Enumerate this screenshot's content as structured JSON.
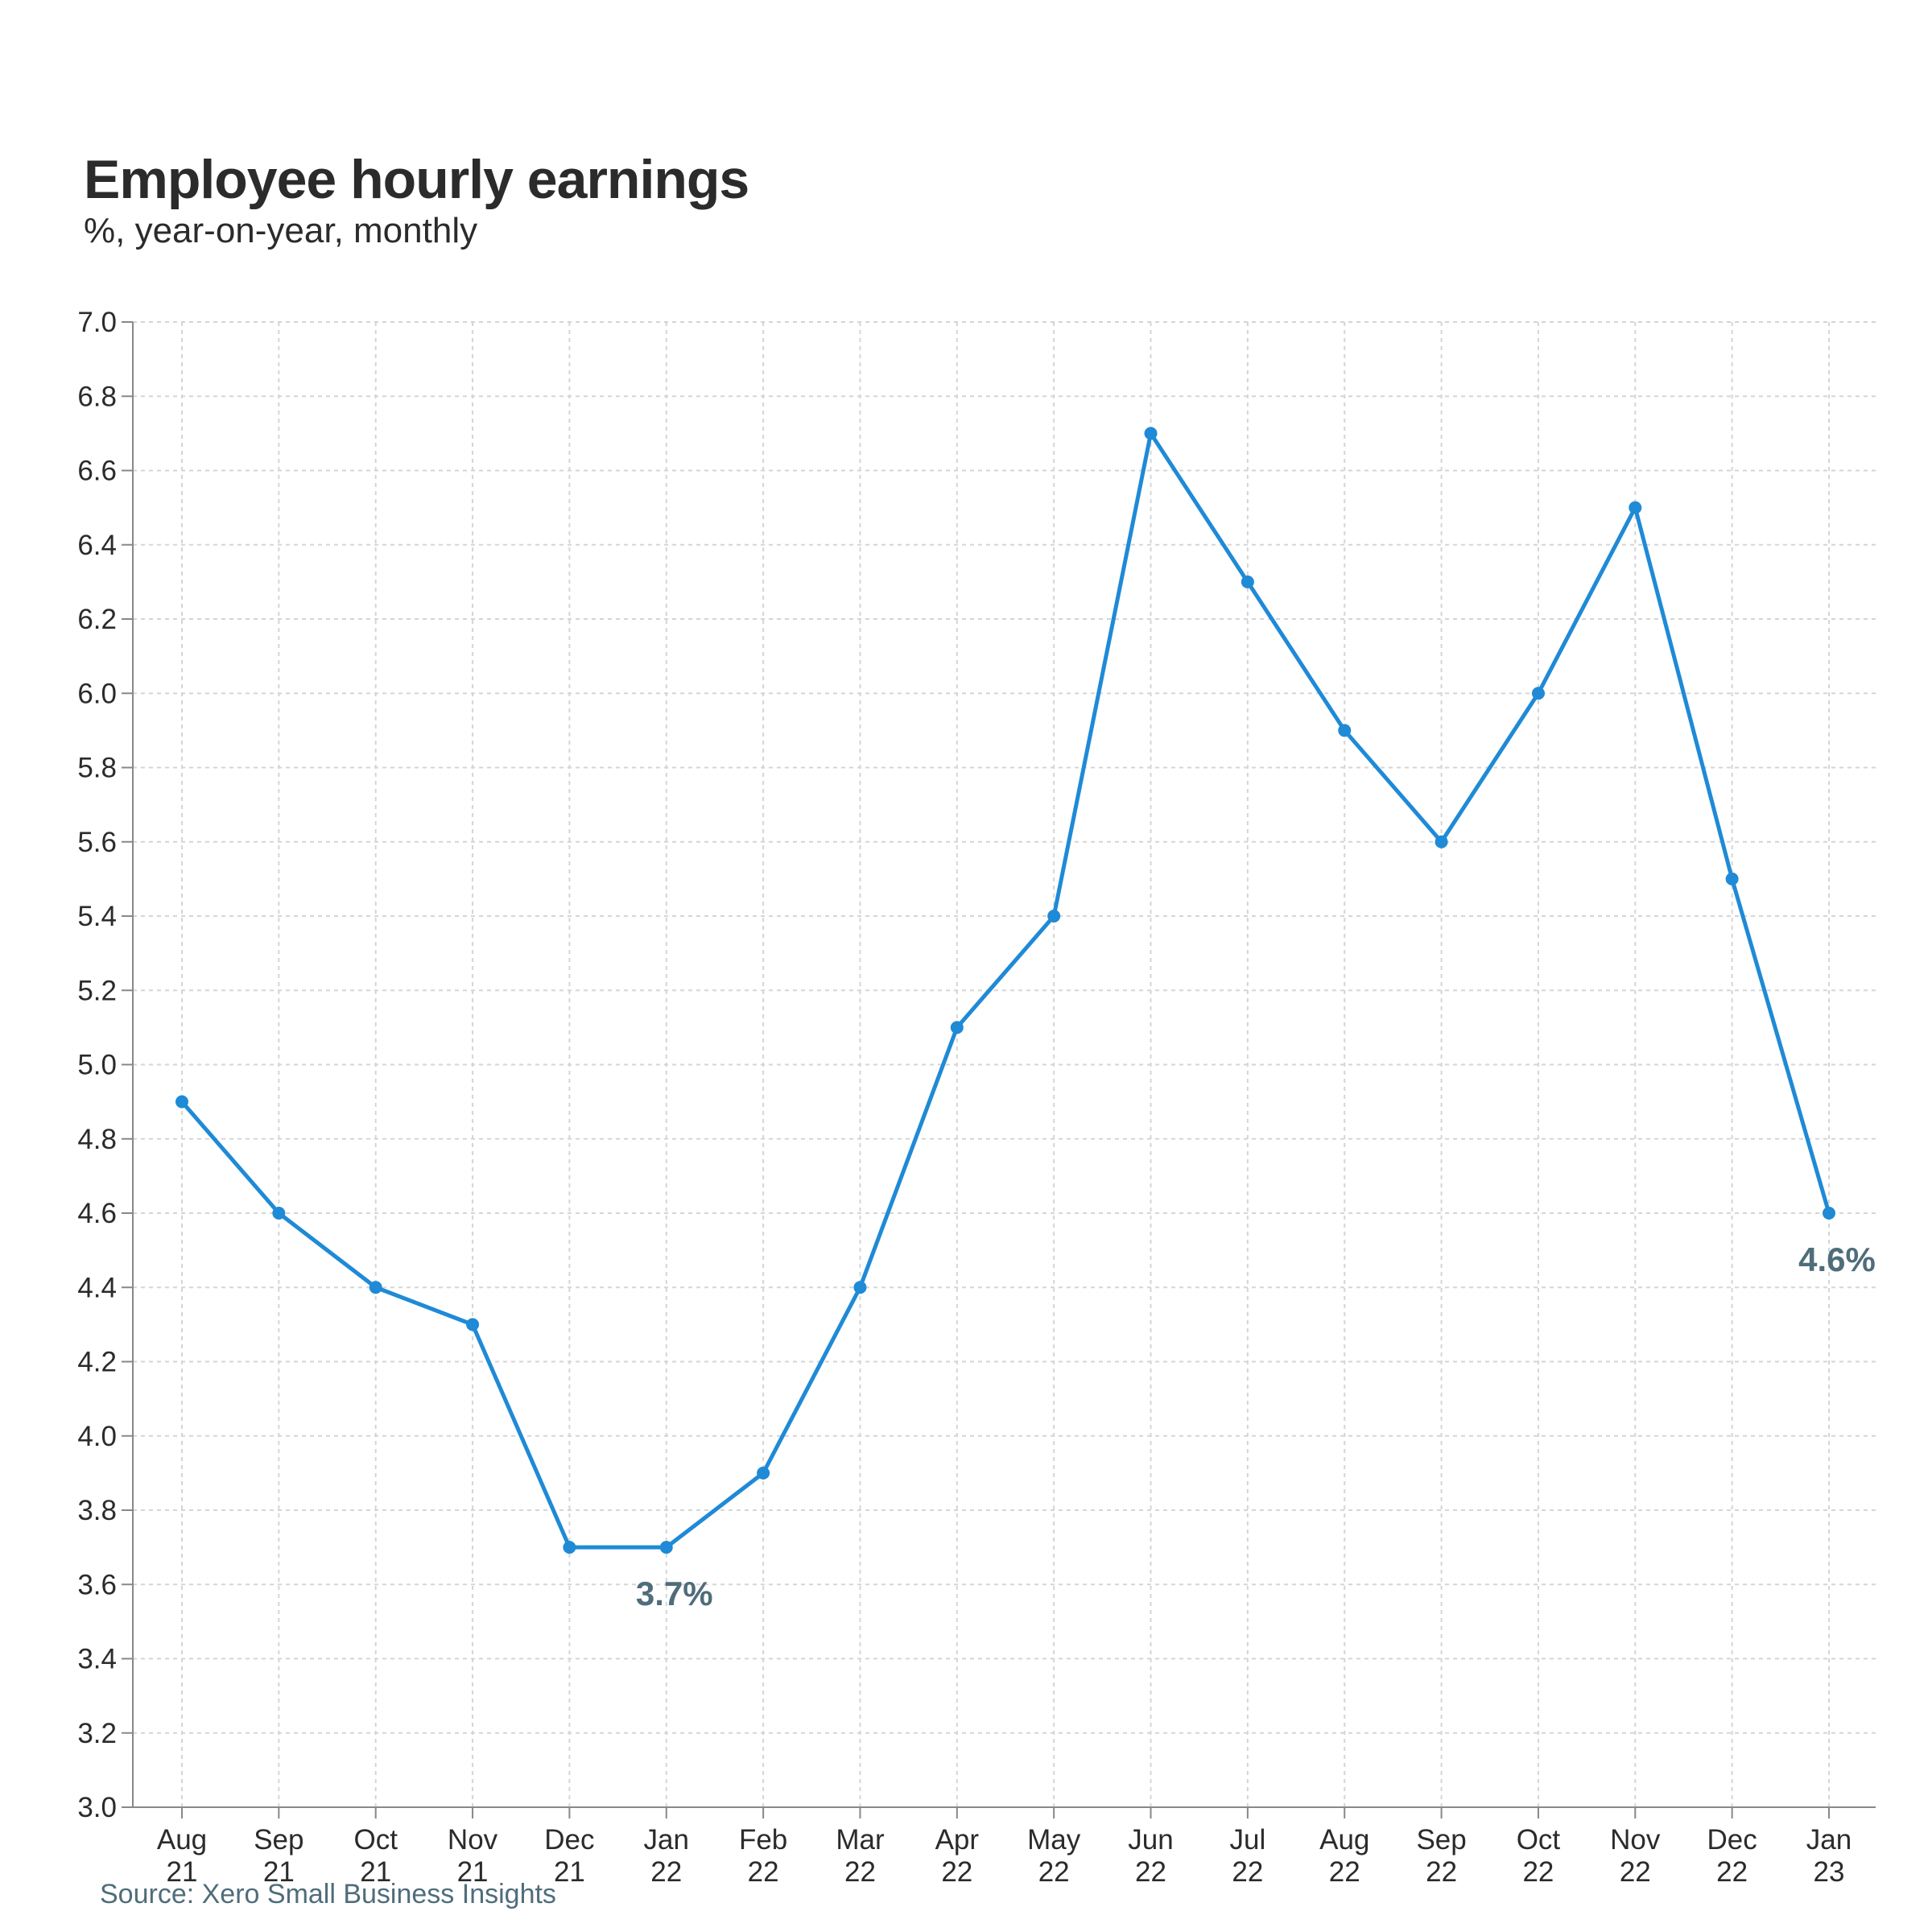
{
  "chart_data": {
    "type": "line",
    "title": "Employee hourly earnings",
    "subtitle": "%, year-on-year, monthly",
    "source": "Source: Xero Small Business Insights",
    "categories": [
      [
        "Aug",
        "21"
      ],
      [
        "Sep",
        "21"
      ],
      [
        "Oct",
        "21"
      ],
      [
        "Nov",
        "21"
      ],
      [
        "Dec",
        "21"
      ],
      [
        "Jan",
        "22"
      ],
      [
        "Feb",
        "22"
      ],
      [
        "Mar",
        "22"
      ],
      [
        "Apr",
        "22"
      ],
      [
        "May",
        "22"
      ],
      [
        "Jun",
        "22"
      ],
      [
        "Jul",
        "22"
      ],
      [
        "Aug",
        "22"
      ],
      [
        "Sep",
        "22"
      ],
      [
        "Oct",
        "22"
      ],
      [
        "Nov",
        "22"
      ],
      [
        "Dec",
        "22"
      ],
      [
        "Jan",
        "23"
      ]
    ],
    "series": [
      {
        "values": [
          4.9,
          4.6,
          4.4,
          4.3,
          3.7,
          3.7,
          3.9,
          4.4,
          5.1,
          5.4,
          6.7,
          6.3,
          5.9,
          5.6,
          6.0,
          6.5,
          5.5,
          4.6
        ]
      }
    ],
    "ylim": [
      3.0,
      7.0
    ],
    "yticks": [
      "3.0",
      "3.2",
      "3.4",
      "3.6",
      "3.8",
      "4.0",
      "4.2",
      "4.4",
      "4.6",
      "4.8",
      "5.0",
      "5.2",
      "5.4",
      "5.6",
      "5.8",
      "6.0",
      "6.2",
      "6.4",
      "6.6",
      "6.8",
      "7.0"
    ],
    "grid": true,
    "annotations": [
      {
        "text": "3.7%",
        "index": 5
      },
      {
        "text": "4.6%",
        "index": 17
      }
    ],
    "colors": {
      "line": "#1f8ad6",
      "annotation": "#4f6d7a",
      "grid": "#d5d5d5",
      "axis": "#888888"
    }
  }
}
